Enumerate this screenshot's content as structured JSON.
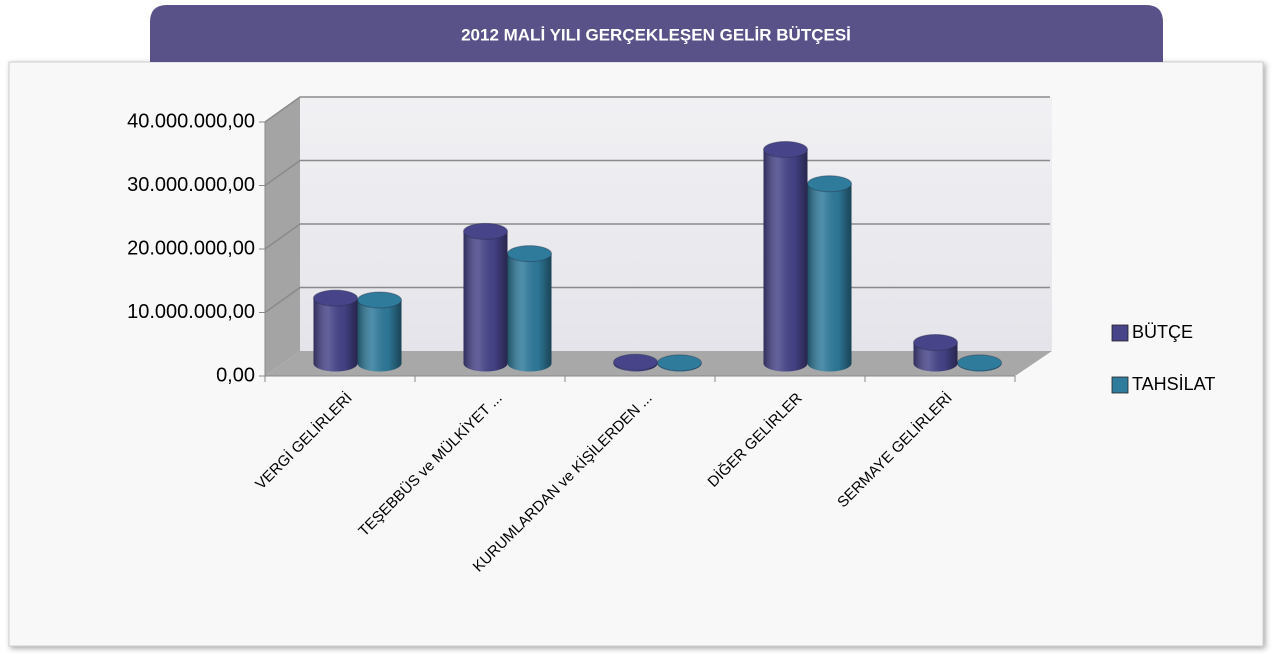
{
  "chart_data": {
    "type": "bar3d",
    "title": "2012 MALİ YILI GERÇEKLEŞEN GELİR BÜTÇESİ",
    "categories": [
      "VERGİ GELİRLERİ",
      "TEŞEBBÜS ve MÜLKİYET ...",
      "KURUMLARDAN ve KİŞİLERDEN ...",
      "DİĞER GELİRLER",
      "SERMAYE GELİRLERİ"
    ],
    "series": [
      {
        "name": "BÜTÇE",
        "color": "#47448a",
        "values": [
          10300000,
          20800000,
          200000,
          33700000,
          3300000
        ]
      },
      {
        "name": "TAHSİLAT",
        "color": "#2f7b9c",
        "values": [
          10000000,
          17300000,
          100000,
          28300000,
          100000
        ]
      }
    ],
    "ylim": [
      0,
      40000000
    ],
    "yticks": [
      {
        "value": 0,
        "label": "0,00"
      },
      {
        "value": 10000000,
        "label": "10.000.000,00"
      },
      {
        "value": 20000000,
        "label": "20.000.000,00"
      },
      {
        "value": 30000000,
        "label": "30.000.000,00"
      },
      {
        "value": 40000000,
        "label": "40.000.000,00"
      }
    ],
    "grid": true,
    "legend": "right"
  }
}
